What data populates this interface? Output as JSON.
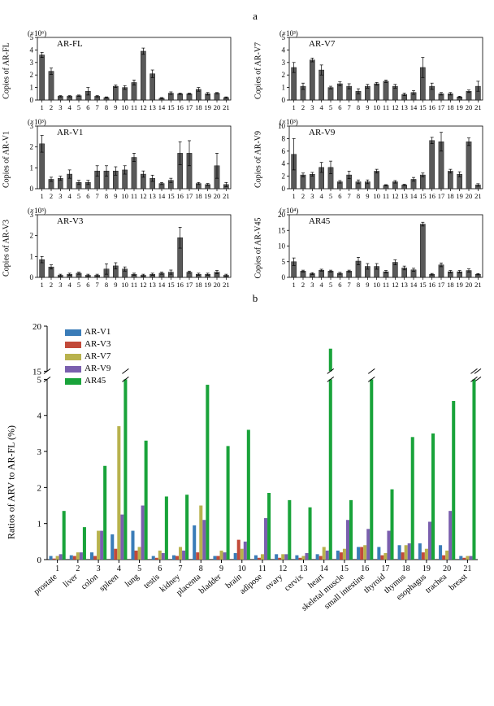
{
  "panelALabel": "a",
  "panelBLabel": "b",
  "subplots": [
    {
      "name": "AR-FL",
      "ylabel": "Copies of AR-FL",
      "exponent": "(×10⁶)",
      "ymax": 5,
      "ytick": 1,
      "values": [
        3.6,
        2.3,
        0.3,
        0.3,
        0.35,
        0.7,
        0.3,
        0.2,
        1.1,
        1.0,
        1.4,
        3.9,
        2.1,
        0.15,
        0.55,
        0.5,
        0.5,
        0.85,
        0.5,
        0.55,
        0.2
      ],
      "errors": [
        0.2,
        0.25,
        0.05,
        0.05,
        0.05,
        0.3,
        0.05,
        0.05,
        0.1,
        0.15,
        0.2,
        0.25,
        0.3,
        0.05,
        0.1,
        0.05,
        0.05,
        0.15,
        0.1,
        0.05,
        0.05
      ]
    },
    {
      "name": "AR-V7",
      "ylabel": "Copies of AR-V7",
      "exponent": "(×10³)",
      "ymax": 5,
      "ytick": 1,
      "values": [
        2.6,
        1.1,
        3.2,
        2.4,
        1.0,
        1.3,
        1.1,
        0.7,
        1.1,
        1.3,
        1.5,
        1.1,
        0.45,
        0.6,
        2.6,
        1.1,
        0.5,
        0.5,
        0.25,
        0.7,
        1.1
      ],
      "errors": [
        0.4,
        0.25,
        0.15,
        0.4,
        0.1,
        0.15,
        0.2,
        0.2,
        0.15,
        0.1,
        0.1,
        0.15,
        0.1,
        0.15,
        0.8,
        0.25,
        0.1,
        0.1,
        0.05,
        0.1,
        0.4
      ]
    },
    {
      "name": "AR-V1",
      "ylabel": "Copies of AR-V1",
      "exponent": "(×10³)",
      "ymax": 3,
      "ytick": 1,
      "values": [
        2.15,
        0.45,
        0.5,
        0.7,
        0.3,
        0.3,
        0.85,
        0.85,
        0.85,
        0.9,
        1.5,
        0.7,
        0.5,
        0.25,
        0.4,
        1.7,
        1.7,
        0.25,
        0.2,
        1.1,
        0.2
      ],
      "errors": [
        0.4,
        0.1,
        0.1,
        0.2,
        0.1,
        0.1,
        0.25,
        0.25,
        0.2,
        0.2,
        0.2,
        0.15,
        0.15,
        0.05,
        0.1,
        0.55,
        0.6,
        0.05,
        0.05,
        0.6,
        0.1
      ]
    },
    {
      "name": "AR-V9",
      "ylabel": "Copies of AR-V9",
      "exponent": "(×10³)",
      "ymax": 10,
      "ytick": 2,
      "values": [
        5.5,
        2.2,
        2.3,
        3.4,
        3.4,
        1.1,
        2.2,
        1.1,
        1.1,
        2.8,
        0.55,
        1.1,
        0.6,
        1.5,
        2.2,
        7.7,
        7.5,
        2.8,
        2.3,
        7.5,
        0.6
      ],
      "errors": [
        2.5,
        0.3,
        0.3,
        0.8,
        1.0,
        0.2,
        0.6,
        0.3,
        0.3,
        0.3,
        0.1,
        0.2,
        0.1,
        0.3,
        0.3,
        0.5,
        1.5,
        0.3,
        0.4,
        0.6,
        0.2
      ]
    },
    {
      "name": "AR-V3",
      "ylabel": "Copies of AR-V3",
      "exponent": "(×10³)",
      "ymax": 3,
      "ytick": 1,
      "values": [
        0.85,
        0.5,
        0.1,
        0.15,
        0.2,
        0.1,
        0.1,
        0.4,
        0.55,
        0.4,
        0.15,
        0.1,
        0.15,
        0.2,
        0.25,
        1.9,
        0.25,
        0.15,
        0.15,
        0.25,
        0.1
      ],
      "errors": [
        0.15,
        0.1,
        0.05,
        0.05,
        0.05,
        0.05,
        0.05,
        0.25,
        0.15,
        0.1,
        0.05,
        0.05,
        0.05,
        0.05,
        0.1,
        0.5,
        0.05,
        0.05,
        0.05,
        0.08,
        0.05
      ]
    },
    {
      "name": "AR45",
      "ylabel": "Copies of AR-V45",
      "exponent": "(×10⁴)",
      "ymax": 20,
      "ytick": 5,
      "values": [
        5,
        2,
        1.2,
        2.3,
        2,
        1.3,
        2,
        5.2,
        3.5,
        3.5,
        1.8,
        4.8,
        3,
        2.4,
        17,
        1,
        4,
        1.8,
        1.8,
        2.2,
        1
      ],
      "errors": [
        1.2,
        0.3,
        0.3,
        0.3,
        0.3,
        0.3,
        0.3,
        1.2,
        0.9,
        0.9,
        0.4,
        0.8,
        0.6,
        0.5,
        0.6,
        0.25,
        0.6,
        0.4,
        0.4,
        0.5,
        0.2
      ]
    }
  ],
  "subplotStyle": {
    "bar_fill": "#595959",
    "bar_stroke": "#000000",
    "error_color": "#000000",
    "axis_color": "#000000",
    "plot_border": true,
    "bar_width_ratio": 0.55,
    "fontsize_axis": 9,
    "fontsize_title": 11
  },
  "xTickLabels": [
    "1",
    "2",
    "3",
    "4",
    "5",
    "6",
    "7",
    "8",
    "9",
    "10",
    "11",
    "12",
    "13",
    "14",
    "15",
    "16",
    "17",
    "18",
    "19",
    "20",
    "21"
  ],
  "panelB": {
    "ylabel": "Ratios of ARV to AR-FL (%)",
    "ylim_lower": [
      0,
      5
    ],
    "ylim_upper": [
      15,
      20
    ],
    "ytick_step": 1,
    "break_marks": true,
    "categories": [
      "prostate",
      "liver",
      "colon",
      "spleen",
      "lung",
      "testis",
      "kidney",
      "placenta",
      "bladder",
      "brain",
      "adipose",
      "ovary",
      "cervix",
      "heart",
      "skeletal muscle",
      "small intestine",
      "thyroid",
      "thymus",
      "esophagus",
      "trachea",
      "breast"
    ],
    "category_numbers": [
      "1",
      "2",
      "3",
      "4",
      "5",
      "6",
      "7",
      "8",
      "9",
      "10",
      "11",
      "12",
      "13",
      "14",
      "15",
      "16",
      "17",
      "18",
      "19",
      "20",
      "21"
    ],
    "series": [
      {
        "name": "AR-V1",
        "color": "#3a7cb8",
        "values": [
          0.1,
          0.12,
          0.2,
          0.7,
          0.8,
          0.1,
          0.12,
          0.95,
          0.1,
          0.18,
          0.12,
          0.15,
          0.12,
          0.15,
          0.25,
          0.35,
          0.35,
          0.4,
          0.45,
          0.4,
          0.1
        ]
      },
      {
        "name": "AR-V3",
        "color": "#c24a3a",
        "values": [
          0.03,
          0.1,
          0.1,
          0.3,
          0.25,
          0.05,
          0.1,
          0.2,
          0.1,
          0.55,
          0.05,
          0.05,
          0.05,
          0.1,
          0.2,
          0.35,
          0.12,
          0.2,
          0.2,
          0.12,
          0.05
        ]
      },
      {
        "name": "AR-V7",
        "color": "#b8b24d",
        "values": [
          0.1,
          0.2,
          0.8,
          3.7,
          0.35,
          0.25,
          0.35,
          1.5,
          0.25,
          0.3,
          0.15,
          0.15,
          0.1,
          0.35,
          0.3,
          0.4,
          0.18,
          0.4,
          0.3,
          0.25,
          0.1
        ]
      },
      {
        "name": "AR-V9",
        "color": "#7a5fae",
        "values": [
          0.15,
          0.2,
          0.8,
          1.25,
          1.5,
          0.18,
          0.25,
          1.1,
          0.2,
          0.5,
          1.15,
          0.15,
          0.18,
          0.25,
          1.1,
          0.85,
          0.8,
          0.45,
          1.05,
          1.35,
          0.1
        ]
      },
      {
        "name": "AR45",
        "color": "#19a33a",
        "values": [
          1.35,
          0.9,
          2.6,
          5.5,
          3.3,
          1.75,
          1.8,
          4.85,
          3.15,
          3.6,
          1.85,
          1.65,
          1.45,
          17.5,
          1.65,
          8.0,
          1.95,
          3.4,
          3.5,
          4.4,
          5.4
        ]
      }
    ],
    "legend_order": [
      "AR-V1",
      "AR-V3",
      "AR-V7",
      "AR-V9",
      "AR45"
    ],
    "bar_group_width": 0.8,
    "background_color": "#ffffff",
    "axis_color": "#000000",
    "fontsize_axis": 11,
    "fontsize_legend": 11
  }
}
